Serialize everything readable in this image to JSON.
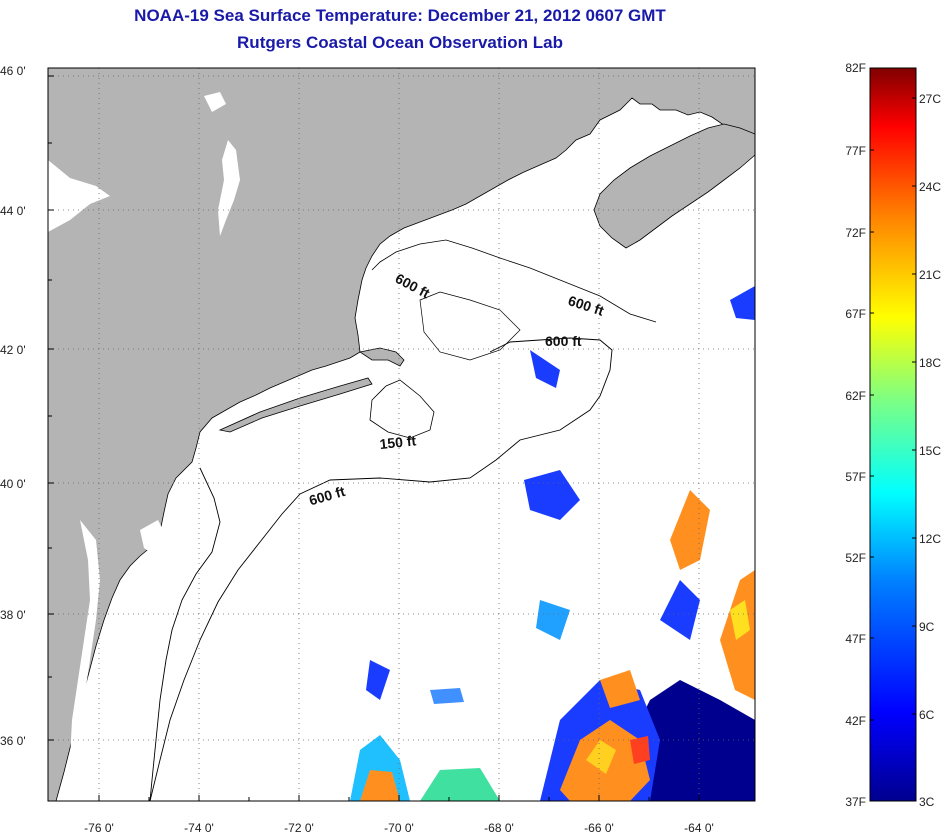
{
  "title": {
    "line1": "NOAA-19 Sea Surface Temperature:  December 21, 2012 0607 GMT",
    "line2": "Rutgers Coastal Ocean Observation Lab"
  },
  "map": {
    "lat_labels": [
      "46 0'",
      "44 0'",
      "42 0'",
      "40 0'",
      "38 0'",
      "36 0'"
    ],
    "lon_labels": [
      "-76 0'",
      "-74 0'",
      "-72 0'",
      "-70 0'",
      "-68 0'",
      "-66 0'",
      "-64 0'"
    ],
    "contour_labels": [
      "600 ft",
      "600 ft",
      "600 ft",
      "150 ft",
      "600 ft"
    ],
    "colors": {
      "land": "#b4b4b4",
      "ocean": "#ffffff",
      "coast": "#000000"
    }
  },
  "colorbar": {
    "fahrenheit_labels": [
      "82F",
      "77F",
      "72F",
      "67F",
      "62F",
      "57F",
      "52F",
      "47F",
      "42F",
      "37F"
    ],
    "celsius_labels": [
      "27C",
      "24C",
      "21C",
      "18C",
      "15C",
      "12C",
      "9C",
      "6C",
      "3C"
    ],
    "gradient_stops": [
      "#00008f",
      "#0000ff",
      "#0080ff",
      "#00ffff",
      "#80ff80",
      "#ffff00",
      "#ff8000",
      "#ff0000",
      "#800000"
    ]
  }
}
